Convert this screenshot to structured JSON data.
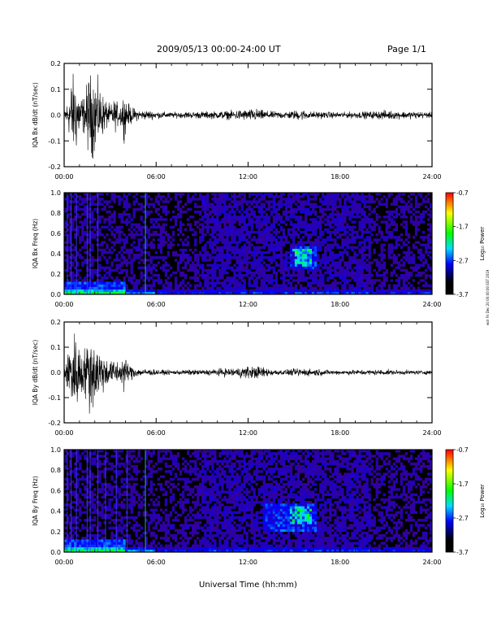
{
  "header": {
    "title": "2009/05/13  00:00-24:00 UT",
    "page": "Page 1/1"
  },
  "side_stamp": "wdr Fri Dec 20 00:00:00 EST 2019",
  "chart_data": [
    {
      "type": "line",
      "ylabel": "IQA Bx dB/dt (nT/sec)",
      "xlabel": "",
      "xlim": [
        "00:00",
        "24:00"
      ],
      "x_ticks": [
        "00:00",
        "06:00",
        "12:00",
        "18:00",
        "24:00"
      ],
      "ylim": [
        -0.2,
        0.2
      ],
      "y_ticks": [
        "-0.2",
        "-0.1",
        "0.0",
        "0.1",
        "0.2"
      ],
      "envelope": {
        "x_hours": [
          0.0,
          0.3,
          0.5,
          0.8,
          1.0,
          1.3,
          1.6,
          2.0,
          2.3,
          2.6,
          3.0,
          3.3,
          3.6,
          3.9,
          4.2,
          4.6,
          5.0,
          5.5,
          6.0,
          7.0,
          8.0,
          9.0,
          10.0,
          11.0,
          11.5,
          12.0,
          12.5,
          13.0,
          13.5,
          14.0,
          14.5,
          15.0,
          15.5,
          16.0,
          16.5,
          17.0,
          18.0,
          19.0,
          20.0,
          21.0,
          22.0,
          23.0,
          24.0
        ],
        "amplitude": [
          0.03,
          0.1,
          0.22,
          0.2,
          0.12,
          0.1,
          0.22,
          0.22,
          0.15,
          0.1,
          0.05,
          0.09,
          0.05,
          0.12,
          0.06,
          0.035,
          0.025,
          0.025,
          0.02,
          0.015,
          0.018,
          0.02,
          0.02,
          0.025,
          0.03,
          0.03,
          0.035,
          0.025,
          0.02,
          0.02,
          0.02,
          0.025,
          0.03,
          0.02,
          0.02,
          0.018,
          0.015,
          0.018,
          0.02,
          0.025,
          0.02,
          0.02,
          0.015
        ]
      }
    },
    {
      "type": "heatmap",
      "ylabel": "IQA Bx Freq (Hz)",
      "xlabel": "",
      "xlim": [
        "00:00",
        "24:00"
      ],
      "x_ticks": [
        "00:00",
        "06:00",
        "12:00",
        "18:00",
        "24:00"
      ],
      "ylim": [
        0.0,
        1.0
      ],
      "y_ticks": [
        "0.0",
        "0.2",
        "0.4",
        "0.6",
        "0.8",
        "1.0"
      ],
      "colorbar": {
        "label": "Log₁₀ Power",
        "ticks": [
          "-0.7",
          "-1.7",
          "-2.7",
          "-3.7"
        ],
        "range": [
          -3.7,
          -0.7
        ]
      },
      "features": {
        "vertical_lines_hours": [
          0.2,
          0.45,
          0.8,
          1.5,
          1.7,
          2.2,
          5.3
        ],
        "patch": {
          "x_hours": [
            15.0,
            16.5
          ],
          "freq_hz": [
            0.25,
            0.48
          ]
        }
      }
    },
    {
      "type": "line",
      "ylabel": "IQA By dB/dt (nT/sec)",
      "xlabel": "",
      "xlim": [
        "00:00",
        "24:00"
      ],
      "x_ticks": [
        "00:00",
        "06:00",
        "12:00",
        "18:00",
        "24:00"
      ],
      "ylim": [
        -0.2,
        0.2
      ],
      "y_ticks": [
        "-0.2",
        "-0.1",
        "0.0",
        "0.1",
        "0.2"
      ],
      "envelope": {
        "x_hours": [
          0.0,
          0.3,
          0.5,
          0.8,
          1.0,
          1.3,
          1.6,
          2.0,
          2.3,
          2.6,
          3.0,
          3.3,
          3.6,
          3.9,
          4.2,
          4.6,
          5.0,
          5.5,
          6.0,
          7.0,
          8.0,
          9.0,
          10.0,
          11.0,
          11.5,
          12.0,
          12.5,
          13.0,
          13.5,
          14.0,
          14.5,
          15.0,
          15.5,
          16.0,
          16.5,
          17.0,
          18.0,
          19.0,
          20.0,
          21.0,
          22.0,
          23.0,
          24.0
        ],
        "amplitude": [
          0.04,
          0.12,
          0.22,
          0.22,
          0.15,
          0.12,
          0.22,
          0.2,
          0.14,
          0.1,
          0.06,
          0.08,
          0.05,
          0.1,
          0.05,
          0.03,
          0.02,
          0.02,
          0.015,
          0.012,
          0.015,
          0.015,
          0.02,
          0.025,
          0.03,
          0.035,
          0.035,
          0.03,
          0.02,
          0.015,
          0.015,
          0.02,
          0.025,
          0.02,
          0.02,
          0.015,
          0.012,
          0.015,
          0.015,
          0.015,
          0.012,
          0.012,
          0.01
        ]
      }
    },
    {
      "type": "heatmap",
      "ylabel": "IQA By Freq (Hz)",
      "xlabel": "Universal Time (hh:mm)",
      "xlim": [
        "00:00",
        "24:00"
      ],
      "x_ticks": [
        "00:00",
        "06:00",
        "12:00",
        "18:00",
        "24:00"
      ],
      "ylim": [
        0.0,
        1.0
      ],
      "y_ticks": [
        "0.0",
        "0.2",
        "0.4",
        "0.6",
        "0.8",
        "1.0"
      ],
      "colorbar": {
        "label": "Log₁₀ Power",
        "ticks": [
          "-0.7",
          "-1.7",
          "-2.7",
          "-3.7"
        ],
        "range": [
          -3.7,
          -0.7
        ]
      },
      "features": {
        "vertical_lines_hours": [
          0.2,
          0.45,
          0.8,
          1.5,
          1.7,
          2.2,
          2.7,
          3.4,
          4.1,
          5.3
        ],
        "patch": {
          "x_hours": [
            13.0,
            16.5
          ],
          "freq_hz": [
            0.2,
            0.48
          ]
        }
      }
    }
  ]
}
